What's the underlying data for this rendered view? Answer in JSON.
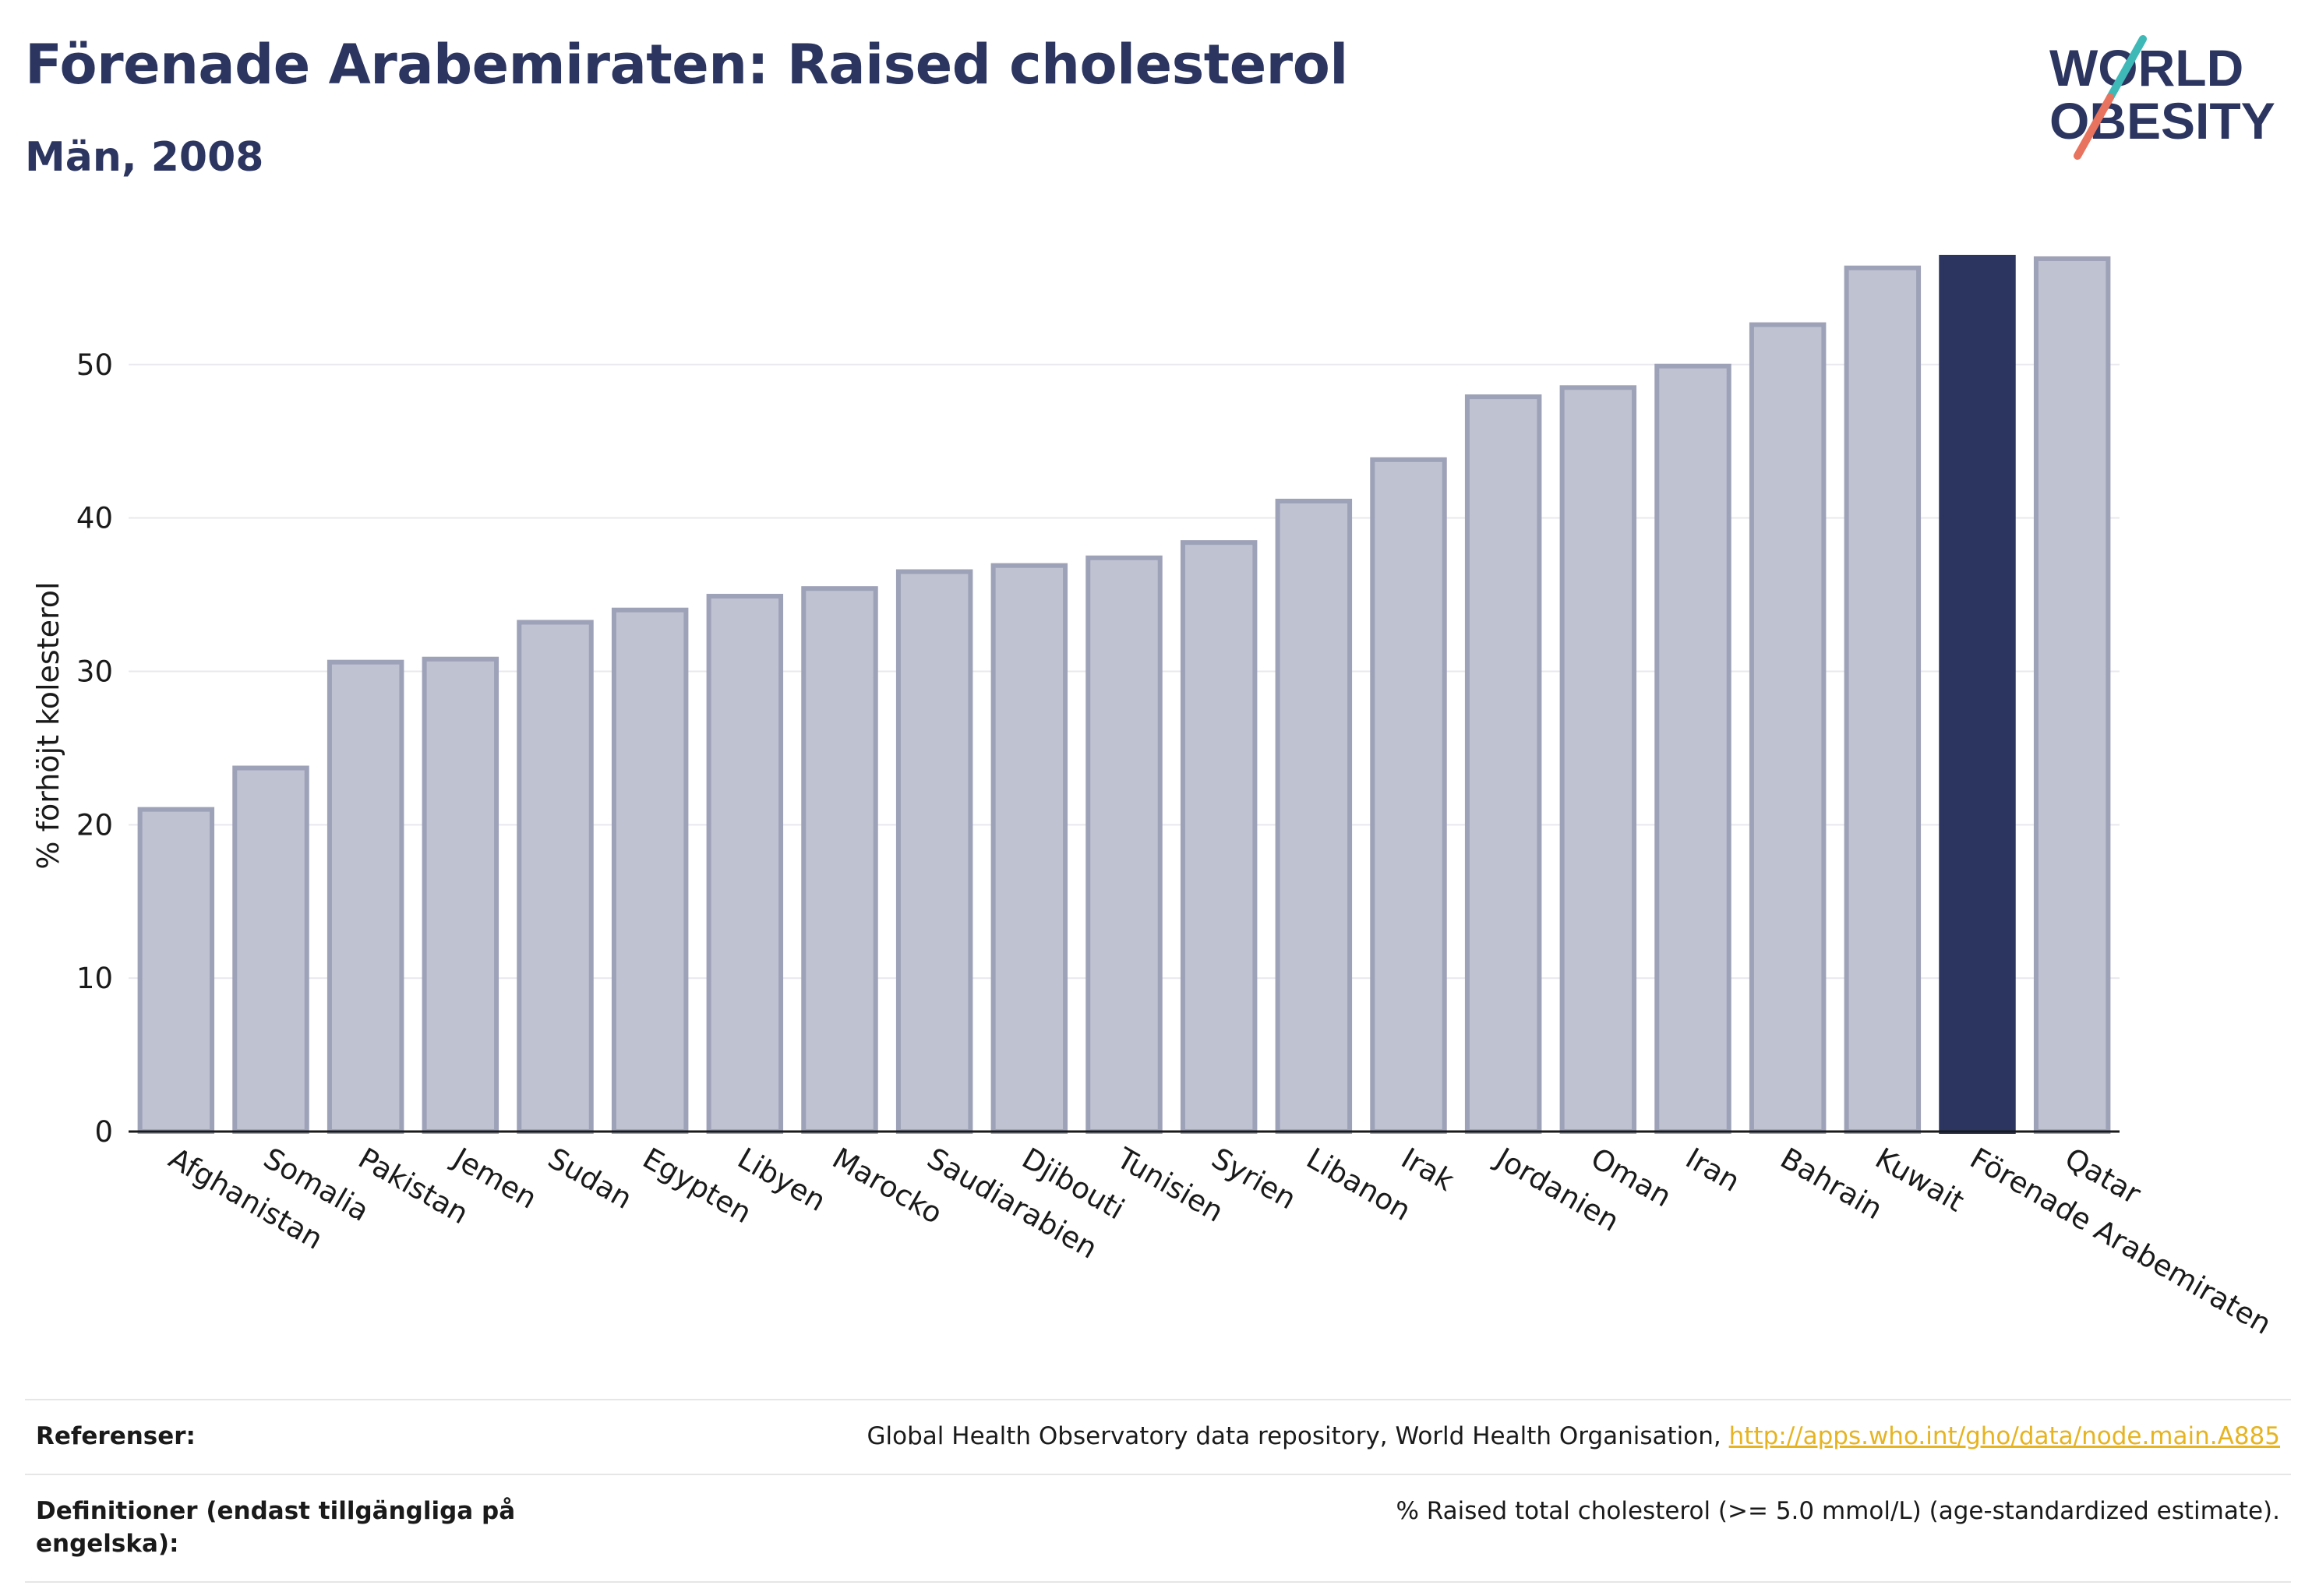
{
  "header": {
    "title": "Förenade Arabemiraten: Raised cholesterol",
    "subtitle": "Män, 2008"
  },
  "logo": {
    "line1": "WORLD",
    "line2": "OBESITY",
    "accent_teal": "#3fb8b8",
    "accent_coral": "#e8735e"
  },
  "chart_data": {
    "type": "bar",
    "ylabel": "% förhöjt kolesterol",
    "ylim": [
      0,
      57
    ],
    "yticks": [
      0,
      10,
      20,
      30,
      40,
      50
    ],
    "grid": true,
    "highlight": "Förenade Arabemiraten",
    "colors": {
      "bar": "#bfc2d0",
      "bar_border": "#9ea2b8",
      "highlight": "#2b3560"
    },
    "categories": [
      "Afghanistan",
      "Somalia",
      "Pakistan",
      "Jemen",
      "Sudan",
      "Egypten",
      "Libyen",
      "Marocko",
      "Saudiarabien",
      "Djibouti",
      "Tunisien",
      "Syrien",
      "Libanon",
      "Irak",
      "Jordanien",
      "Oman",
      "Iran",
      "Bahrain",
      "Kuwait",
      "Förenade Arabemiraten",
      "Qatar"
    ],
    "values": [
      21.0,
      23.7,
      30.6,
      30.8,
      33.2,
      34.0,
      34.9,
      35.4,
      36.5,
      36.9,
      37.4,
      38.4,
      41.1,
      43.8,
      47.9,
      48.5,
      49.9,
      52.6,
      56.3,
      57.0,
      56.9
    ]
  },
  "footer": {
    "ref_label": "Referenser:",
    "ref_text": "Global Health Observatory data repository, World Health Organisation,",
    "ref_link": "http://apps.who.int/gho/data/node.main.A885",
    "def_label": "Definitioner (endast tillgängliga på engelska):",
    "def_text": "% Raised total cholesterol (>= 5.0 mmol/L) (age-standardized estimate)."
  }
}
